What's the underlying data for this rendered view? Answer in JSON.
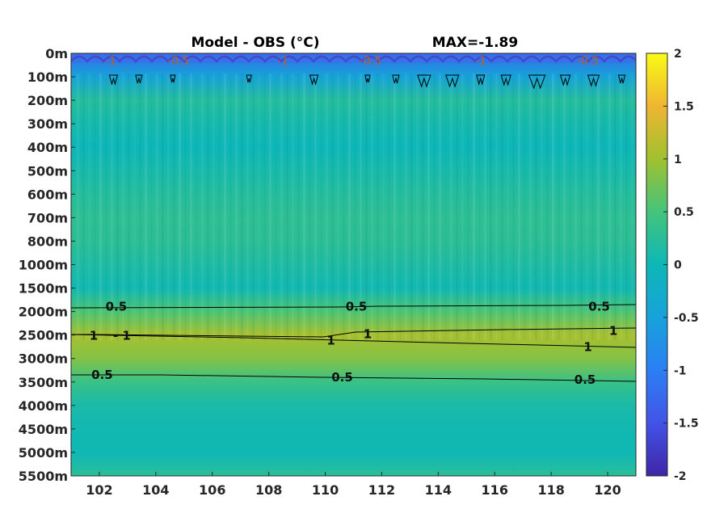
{
  "chart_data": {
    "type": "heatmap",
    "title": "Model - OBS",
    "title_unit": "(°C)",
    "max_label": "MAX=-1.89",
    "x_ticks": [
      "102",
      "104",
      "106",
      "108",
      "110",
      "112",
      "114",
      "116",
      "118",
      "120"
    ],
    "x_tick_values": [
      102,
      104,
      106,
      108,
      110,
      112,
      114,
      116,
      118,
      120
    ],
    "xlim": [
      101,
      121
    ],
    "y_ticks": [
      "0m",
      "100m",
      "200m",
      "300m",
      "400m",
      "500m",
      "600m",
      "700m",
      "800m",
      "1000m",
      "1500m",
      "2000m",
      "2500m",
      "3000m",
      "3500m",
      "4000m",
      "4500m",
      "5000m",
      "5500m"
    ],
    "colorbar": {
      "ticks": [
        "2",
        "1.5",
        "1",
        "0.5",
        "0",
        "-0.5",
        "-1",
        "-1.5",
        "-2"
      ],
      "clim": [
        -2,
        2
      ],
      "colormap": "parula"
    },
    "depth_profile": [
      {
        "depth": "0m",
        "value": -1.2
      },
      {
        "depth": "100m",
        "value": -0.45
      },
      {
        "depth": "200m",
        "value": 0.22
      },
      {
        "depth": "300m",
        "value": 0.08
      },
      {
        "depth": "400m",
        "value": -0.02
      },
      {
        "depth": "500m",
        "value": 0.1
      },
      {
        "depth": "600m",
        "value": 0.22
      },
      {
        "depth": "700m",
        "value": 0.3
      },
      {
        "depth": "800m",
        "value": 0.28
      },
      {
        "depth": "1000m",
        "value": 0.16
      },
      {
        "depth": "1500m",
        "value": 0.04
      },
      {
        "depth": "2000m",
        "value": 0.55
      },
      {
        "depth": "2500m",
        "value": 1.05
      },
      {
        "depth": "3000m",
        "value": 0.85
      },
      {
        "depth": "3500m",
        "value": 0.4
      },
      {
        "depth": "4000m",
        "value": 0.12
      },
      {
        "depth": "4500m",
        "value": 0.05
      },
      {
        "depth": "5000m",
        "value": 0.02
      },
      {
        "depth": "5500m",
        "value": 0.25
      }
    ],
    "contour_labels": [
      {
        "label": "-1",
        "x": 102.4,
        "depth": "0m"
      },
      {
        "label": "-0.5",
        "x": 104.8,
        "depth": "0m"
      },
      {
        "label": "-1",
        "x": 108.5,
        "depth": "0m"
      },
      {
        "label": "-0.5",
        "x": 111.6,
        "depth": "0m"
      },
      {
        "label": "-1",
        "x": 115.5,
        "depth": "0m"
      },
      {
        "label": "-0.5",
        "x": 119.3,
        "depth": "0m"
      },
      {
        "label": "0.5",
        "x": 102.6,
        "depth": "2000m"
      },
      {
        "label": "0.5",
        "x": 111.1,
        "depth": "2000m"
      },
      {
        "label": "0.5",
        "x": 119.7,
        "depth": "2000m"
      },
      {
        "label": "1",
        "x": 101.8,
        "depth": "2500m"
      },
      {
        "label": "- 1",
        "x": 102.8,
        "depth": "2500m"
      },
      {
        "label": "1",
        "x": 110.2,
        "depth": "2500m"
      },
      {
        "label": "1",
        "x": 111.5,
        "depth": "2500m"
      },
      {
        "label": "1",
        "x": 119.3,
        "depth": "2500m"
      },
      {
        "label": "1",
        "x": 120.2,
        "depth": "2500m"
      },
      {
        "label": "0.5",
        "x": 102.1,
        "depth": "3500m"
      },
      {
        "label": "0.5",
        "x": 110.6,
        "depth": "3500m"
      },
      {
        "label": "0.5",
        "x": 119.2,
        "depth": "3500m"
      }
    ]
  }
}
